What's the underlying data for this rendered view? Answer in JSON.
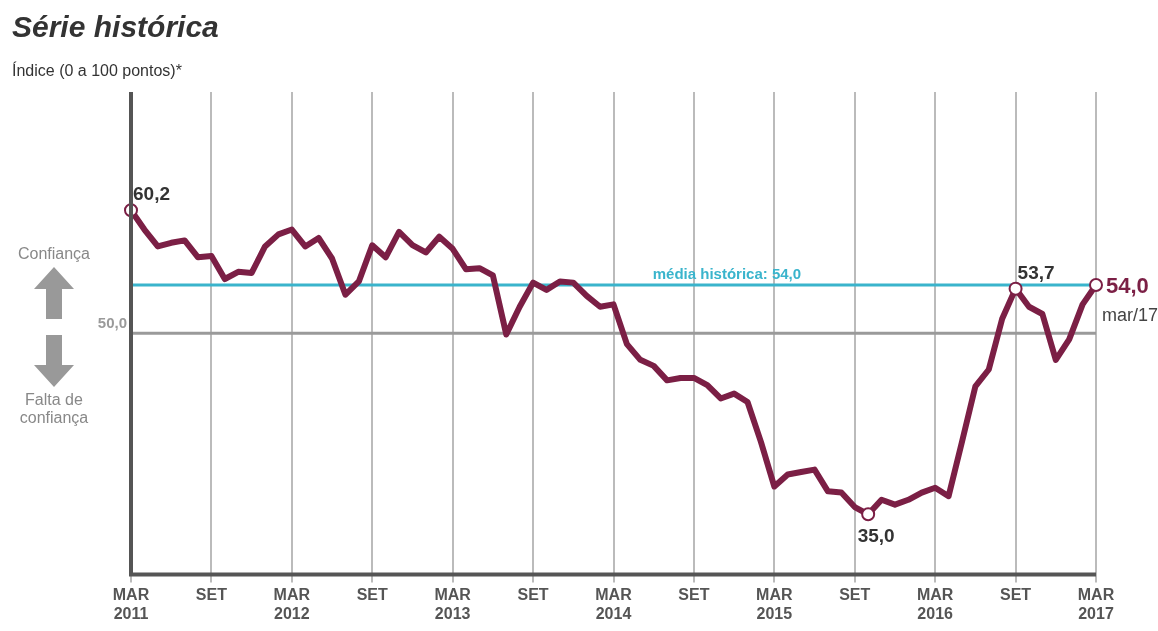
{
  "chart_data": {
    "type": "line",
    "title": "Série histórica",
    "subtitle": "Índice (0 a 100 pontos)*",
    "categories": [
      "MAR 2011",
      null,
      null,
      null,
      null,
      null,
      "SET",
      null,
      null,
      null,
      null,
      null,
      "MAR 2012",
      null,
      null,
      null,
      null,
      null,
      "SET",
      null,
      null,
      null,
      null,
      null,
      "MAR 2013",
      null,
      null,
      null,
      null,
      null,
      "SET",
      null,
      null,
      null,
      null,
      null,
      "MAR 2014",
      null,
      null,
      null,
      null,
      null,
      "SET",
      null,
      null,
      null,
      null,
      null,
      "MAR 2015",
      null,
      null,
      null,
      null,
      null,
      "SET",
      null,
      null,
      null,
      null,
      null,
      "MAR 2016",
      null,
      null,
      null,
      null,
      null,
      "SET",
      null,
      null,
      null,
      null,
      null,
      "MAR 2017"
    ],
    "series": [
      {
        "color": "#7b1f45",
        "values": [
          60.2,
          58.6,
          57.2,
          57.5,
          57.7,
          56.3,
          56.4,
          54.5,
          55.1,
          55.0,
          57.2,
          58.2,
          58.6,
          57.2,
          57.9,
          56.2,
          53.2,
          54.3,
          57.3,
          56.3,
          58.4,
          57.3,
          56.7,
          58.0,
          57.0,
          55.3,
          55.4,
          54.8,
          49.9,
          52.2,
          54.2,
          53.6,
          54.3,
          54.2,
          53.1,
          52.2,
          52.4,
          49.1,
          47.8,
          47.3,
          46.1,
          46.3,
          46.3,
          45.7,
          44.6,
          45.0,
          44.3,
          41.0,
          37.3,
          38.3,
          38.5,
          38.7,
          36.9,
          36.8,
          35.6,
          35.0,
          36.2,
          35.8,
          36.2,
          36.8,
          37.2,
          36.5,
          41.0,
          45.6,
          47.0,
          51.2,
          53.7,
          52.2,
          51.6,
          47.8,
          49.5,
          52.4,
          54.0
        ],
        "value_labels": [
          "60,2",
          null,
          null,
          null,
          null,
          null,
          null,
          null,
          null,
          null,
          null,
          null,
          null,
          null,
          null,
          null,
          null,
          null,
          null,
          null,
          null,
          null,
          null,
          null,
          null,
          null,
          null,
          null,
          null,
          null,
          null,
          null,
          null,
          null,
          null,
          null,
          null,
          null,
          null,
          null,
          null,
          null,
          null,
          null,
          null,
          null,
          null,
          null,
          null,
          null,
          null,
          null,
          null,
          null,
          null,
          "35,0",
          null,
          null,
          null,
          null,
          null,
          null,
          null,
          null,
          null,
          null,
          "53,7",
          null,
          null,
          null,
          null,
          null,
          "54,0"
        ]
      }
    ],
    "ylim": [
      30,
      70
    ],
    "tick_labels": "x",
    "grid": "x",
    "legend": false,
    "ref_lines": [
      {
        "axis": "y",
        "value": 50.0,
        "label": "50,0",
        "color": "#9a9a9a"
      },
      {
        "axis": "y",
        "value": 54.0,
        "label": "média histórica: 54,0",
        "color": "#3ab4cc"
      }
    ],
    "annotations": [
      "Confiança",
      "Falta de confiança",
      {
        "text": "mar/17",
        "x": "MAR 2017",
        "y": 54.0
      }
    ]
  }
}
